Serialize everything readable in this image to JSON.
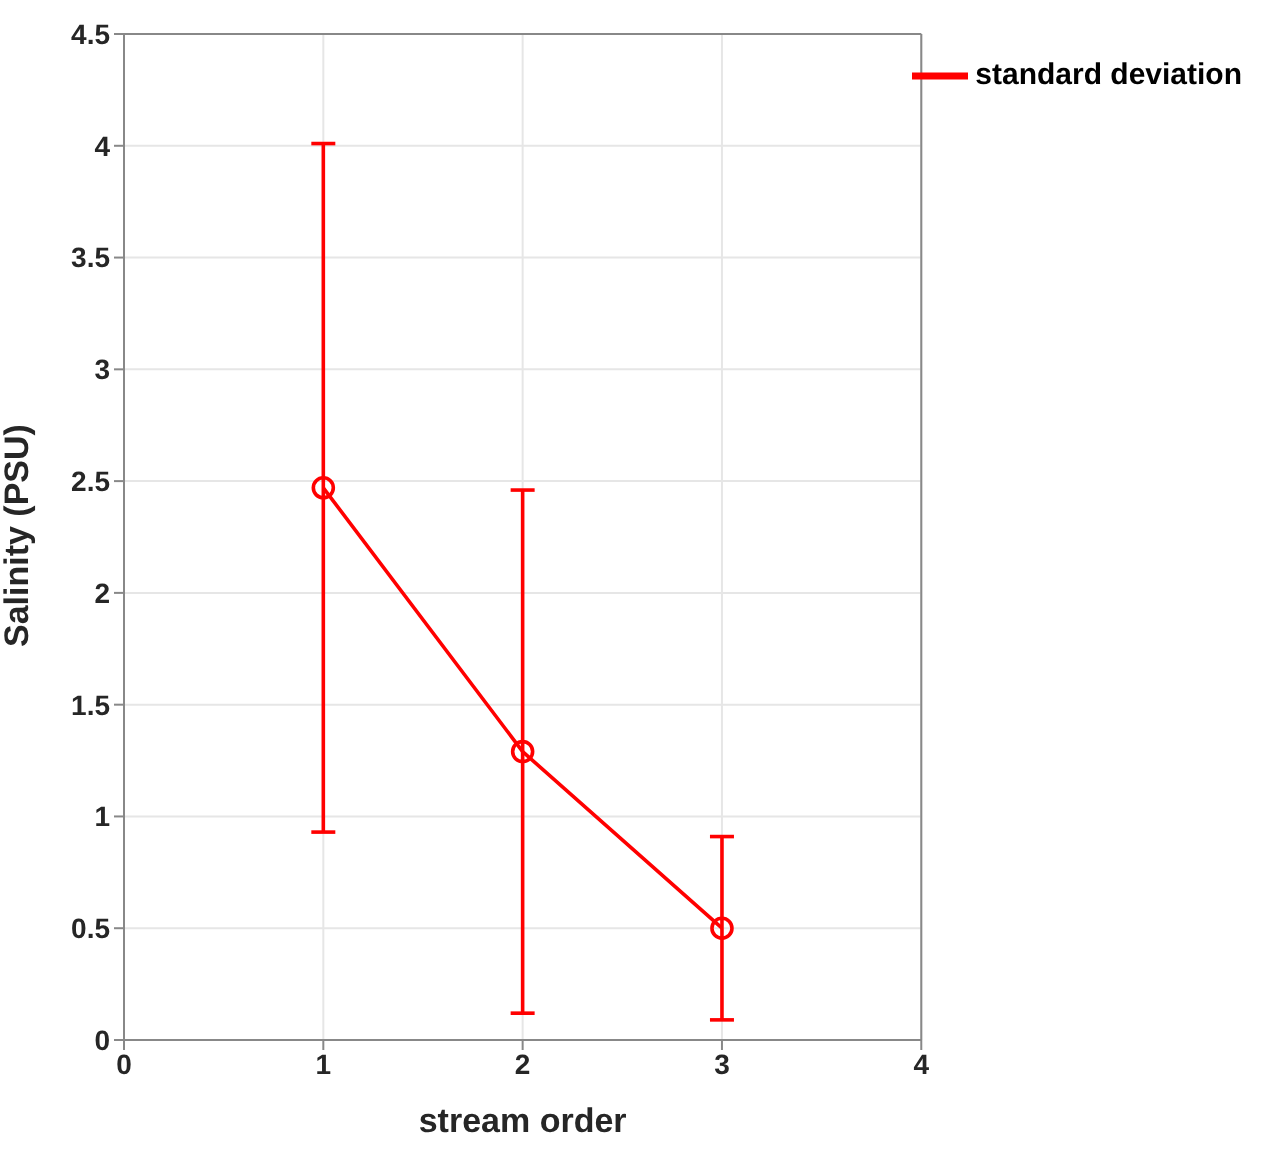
{
  "chart_data": {
    "type": "line",
    "xlabel": "stream order",
    "ylabel": "Salinity (PSU)",
    "x": [
      1,
      2,
      3
    ],
    "series": [
      {
        "name": "standard deviation",
        "color": "#ff0000",
        "values": [
          2.47,
          1.29,
          0.5
        ],
        "errors": [
          1.54,
          1.17,
          0.41
        ]
      }
    ],
    "xlim": [
      0,
      4
    ],
    "xticks": [
      0,
      1,
      2,
      3,
      4
    ],
    "ylim": [
      0,
      4.5
    ],
    "yticks": [
      0,
      0.5,
      1,
      1.5,
      2,
      2.5,
      3,
      3.5,
      4,
      4.5
    ],
    "grid": true,
    "legend": "top right",
    "marker": "circle",
    "line_style": "solid"
  }
}
